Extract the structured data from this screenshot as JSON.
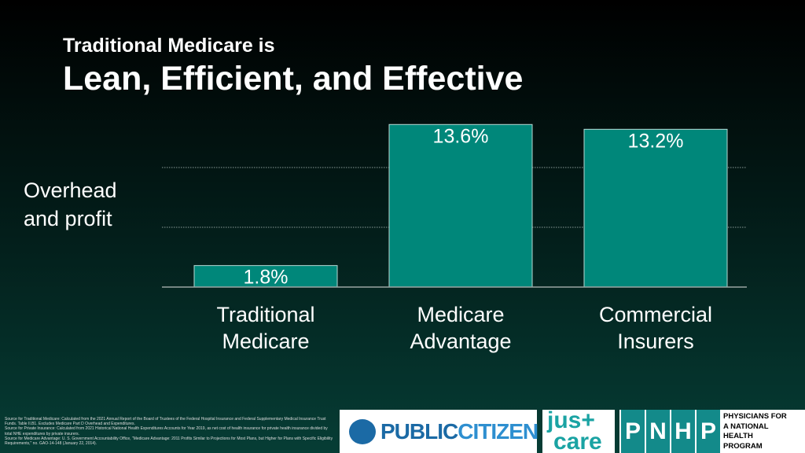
{
  "chart_data": {
    "type": "bar",
    "supertitle": "Traditional Medicare is",
    "title": "Lean, Efficient, and Effective",
    "ylabel": "Overhead and profit",
    "categories": [
      "Traditional Medicare",
      "Medicare Advantage",
      "Commercial Insurers"
    ],
    "values": [
      1.8,
      13.6,
      13.2
    ],
    "value_labels": [
      "1.8%",
      "13.6%",
      "13.2%"
    ],
    "color": "#00877a",
    "ylim": [
      0,
      15
    ],
    "yticks": [
      5,
      10
    ],
    "grid": true
  },
  "footnotes": [
    "Source for Traditional Medicare: Calculated from the 2021 Annual Report of the Board of Trustees of the Federal Hospital Insurance and Federal Supplementary Medical Insurance Trust Funds. Table II.B1. Excludes Medicare Part D Overhead and Expenditures.",
    "Source for Private Insurance: Calculated from 2021 Historical National Health Expenditures Accounts for Year 2019, as net cost of health insurance for private health insurance divided by total NHE expenditures by private insurers.",
    "Source for Medicare Advantage: U. S. Government Accountability Office, \"Medicare Advantage: 2011 Profits Similar to Projections for Most Plans, but Higher for Plans with Specific Eligibility Requirements,\" no. GAO-14-148 (January 22, 2014)."
  ],
  "logos": {
    "public_citizen": [
      "PUBLIC",
      "CITIZEN"
    ],
    "just_care": [
      "jus+",
      "care"
    ],
    "pnhp": [
      "P",
      "N",
      "H",
      "P"
    ],
    "pnhp_name": [
      "PHYSICIANS FOR",
      "A NATIONAL",
      "HEALTH",
      "PROGRAM"
    ]
  }
}
